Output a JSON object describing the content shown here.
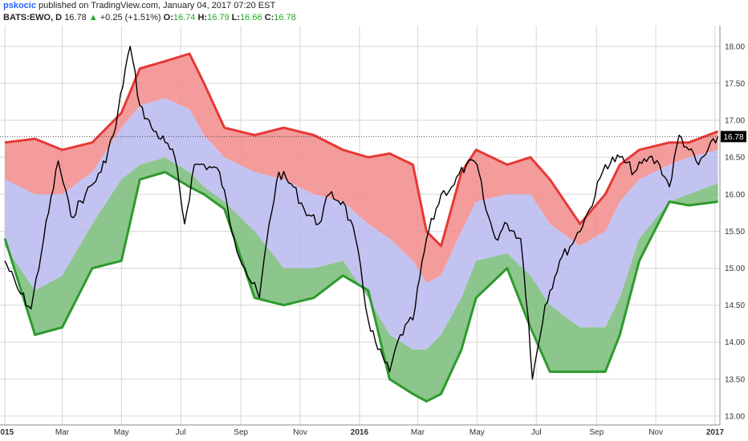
{
  "header": {
    "author": "pskocic",
    "published": "published on TradingView.com, January 04, 2017 07:20 EST",
    "symbol": "BATS:EWO, D",
    "last": "16.78",
    "up_arrow": "▲",
    "change": "+0.25 (+1.51%)",
    "open_label": "O:",
    "open": "16.74",
    "high_label": "H:",
    "high": "16.79",
    "low_label": "L:",
    "low": "16.66",
    "close_label": "C:",
    "close": "16.78"
  },
  "colors": {
    "price": "#000000",
    "upper_band_line": "#e53935",
    "upper_fill": "#f28b8b",
    "mid_fill": "#b8b8f0",
    "lower_band_line": "#2e9a2e",
    "lower_fill": "#7fc07f",
    "last_price_badge": "#000000"
  },
  "chart_data": {
    "type": "line",
    "title": "",
    "xlabel": "",
    "ylabel": "",
    "ylim": [
      12.88,
      18.28
    ],
    "x_ticks": [
      "2015",
      "Mar",
      "May",
      "Jul",
      "Sep",
      "Nov",
      "2016",
      "Mar",
      "May",
      "Jul",
      "Sep",
      "Nov",
      "2017"
    ],
    "y_ticks": [
      "18.00",
      "17.50",
      "17.00",
      "16.50",
      "16.00",
      "15.50",
      "15.00",
      "14.50",
      "14.00",
      "13.50",
      "13.00"
    ],
    "last_price_label": "16.78",
    "grid": true,
    "series": [
      {
        "role": "price",
        "x": [
          "2015-01-01",
          "2015-01-15",
          "2015-01-28",
          "2015-02-10",
          "2015-02-25",
          "2015-03-10",
          "2015-03-25",
          "2015-04-10",
          "2015-04-25",
          "2015-05-05",
          "2015-05-10",
          "2015-05-20",
          "2015-06-01",
          "2015-06-15",
          "2015-06-25",
          "2015-07-05",
          "2015-07-15",
          "2015-07-25",
          "2015-08-10",
          "2015-08-25",
          "2015-09-05",
          "2015-09-20",
          "2015-09-30",
          "2015-10-10",
          "2015-10-25",
          "2015-11-05",
          "2015-11-20",
          "2015-12-01",
          "2015-12-15",
          "2015-12-28",
          "2016-01-10",
          "2016-01-20",
          "2016-02-01",
          "2016-02-12",
          "2016-02-25",
          "2016-03-10",
          "2016-03-25",
          "2016-04-05",
          "2016-04-20",
          "2016-05-01",
          "2016-05-10",
          "2016-05-20",
          "2016-06-01",
          "2016-06-15",
          "2016-06-23",
          "2016-06-27",
          "2016-07-10",
          "2016-07-25",
          "2016-08-10",
          "2016-08-25",
          "2016-09-10",
          "2016-09-25",
          "2016-10-10",
          "2016-10-25",
          "2016-11-05",
          "2016-11-15",
          "2016-11-25",
          "2016-12-05",
          "2016-12-15",
          "2017-01-04"
        ],
        "values": [
          15.1,
          14.7,
          14.45,
          15.4,
          16.45,
          15.7,
          16.0,
          16.3,
          16.9,
          17.7,
          18.0,
          17.2,
          16.9,
          16.7,
          16.5,
          15.6,
          16.4,
          16.4,
          16.3,
          15.4,
          15.0,
          14.6,
          15.6,
          16.3,
          16.1,
          15.8,
          15.6,
          16.0,
          15.9,
          15.4,
          14.3,
          13.9,
          13.6,
          14.1,
          14.3,
          15.4,
          16.0,
          16.1,
          16.4,
          16.4,
          15.8,
          15.4,
          15.6,
          15.4,
          14.3,
          13.5,
          14.5,
          15.1,
          15.4,
          15.8,
          16.4,
          16.5,
          16.3,
          16.5,
          16.4,
          16.1,
          16.8,
          16.6,
          16.4,
          16.78
        ]
      },
      {
        "role": "upper_band",
        "x": [
          "2015-01-01",
          "2015-02-01",
          "2015-03-01",
          "2015-04-01",
          "2015-05-01",
          "2015-05-20",
          "2015-06-15",
          "2015-07-10",
          "2015-07-25",
          "2015-08-15",
          "2015-09-15",
          "2015-10-15",
          "2015-11-15",
          "2015-12-15",
          "2016-01-10",
          "2016-02-01",
          "2016-02-25",
          "2016-03-10",
          "2016-03-25",
          "2016-04-15",
          "2016-04-30",
          "2016-06-01",
          "2016-06-25",
          "2016-07-15",
          "2016-08-15",
          "2016-09-10",
          "2016-09-25",
          "2016-10-15",
          "2016-11-15",
          "2016-12-05",
          "2017-01-04"
        ],
        "values": [
          16.7,
          16.75,
          16.6,
          16.7,
          17.1,
          17.7,
          17.8,
          17.9,
          17.5,
          16.9,
          16.8,
          16.9,
          16.8,
          16.6,
          16.5,
          16.55,
          16.4,
          15.5,
          15.3,
          16.3,
          16.6,
          16.4,
          16.5,
          16.2,
          15.6,
          16.0,
          16.4,
          16.6,
          16.7,
          16.7,
          16.85
        ]
      },
      {
        "role": "upper_mid",
        "x": [
          "2015-01-01",
          "2015-02-01",
          "2015-03-01",
          "2015-04-01",
          "2015-05-01",
          "2015-05-20",
          "2015-06-15",
          "2015-07-10",
          "2015-07-25",
          "2015-08-15",
          "2015-09-15",
          "2015-10-15",
          "2015-11-15",
          "2015-12-15",
          "2016-01-10",
          "2016-02-01",
          "2016-02-25",
          "2016-03-10",
          "2016-03-25",
          "2016-04-15",
          "2016-04-30",
          "2016-06-01",
          "2016-06-25",
          "2016-07-15",
          "2016-08-15",
          "2016-09-10",
          "2016-09-25",
          "2016-10-15",
          "2016-11-15",
          "2016-12-05",
          "2017-01-04"
        ],
        "values": [
          16.2,
          16.0,
          16.0,
          16.3,
          16.9,
          17.2,
          17.3,
          17.15,
          16.8,
          16.5,
          16.3,
          16.2,
          16.0,
          15.9,
          15.6,
          15.4,
          15.1,
          14.8,
          14.9,
          15.5,
          15.9,
          16.0,
          16.0,
          15.6,
          15.3,
          15.5,
          15.9,
          16.2,
          16.4,
          16.5,
          16.6
        ]
      },
      {
        "role": "lower_mid",
        "x": [
          "2015-01-01",
          "2015-02-01",
          "2015-03-01",
          "2015-04-01",
          "2015-05-01",
          "2015-05-20",
          "2015-06-15",
          "2015-07-10",
          "2015-07-25",
          "2015-08-15",
          "2015-09-15",
          "2015-10-15",
          "2015-11-15",
          "2015-12-15",
          "2016-01-10",
          "2016-02-01",
          "2016-02-25",
          "2016-03-10",
          "2016-03-25",
          "2016-04-15",
          "2016-04-30",
          "2016-06-01",
          "2016-06-25",
          "2016-07-15",
          "2016-08-15",
          "2016-09-10",
          "2016-09-25",
          "2016-10-15",
          "2016-11-15",
          "2016-12-05",
          "2017-01-04"
        ],
        "values": [
          15.3,
          14.7,
          14.9,
          15.6,
          16.2,
          16.4,
          16.5,
          16.3,
          16.1,
          15.9,
          15.5,
          15.0,
          15.0,
          15.1,
          14.6,
          14.1,
          13.9,
          13.9,
          14.1,
          14.6,
          15.1,
          15.2,
          14.9,
          14.5,
          14.2,
          14.2,
          14.6,
          15.4,
          15.9,
          16.0,
          16.15
        ]
      },
      {
        "role": "lower_band",
        "x": [
          "2015-01-01",
          "2015-02-01",
          "2015-03-01",
          "2015-04-01",
          "2015-05-01",
          "2015-05-20",
          "2015-06-15",
          "2015-07-10",
          "2015-07-25",
          "2015-08-15",
          "2015-09-15",
          "2015-10-15",
          "2015-11-15",
          "2015-12-15",
          "2016-01-10",
          "2016-02-01",
          "2016-02-25",
          "2016-03-10",
          "2016-03-25",
          "2016-04-15",
          "2016-04-30",
          "2016-06-01",
          "2016-06-25",
          "2016-07-15",
          "2016-08-15",
          "2016-09-10",
          "2016-09-25",
          "2016-10-15",
          "2016-11-15",
          "2016-12-05",
          "2017-01-04"
        ],
        "values": [
          15.4,
          14.1,
          14.2,
          15.0,
          15.1,
          16.2,
          16.3,
          16.1,
          16.0,
          15.8,
          14.6,
          14.5,
          14.6,
          14.9,
          14.7,
          13.5,
          13.3,
          13.2,
          13.3,
          13.9,
          14.6,
          15.0,
          14.2,
          13.6,
          13.6,
          13.6,
          14.1,
          15.1,
          15.9,
          15.85,
          15.9
        ]
      }
    ]
  }
}
